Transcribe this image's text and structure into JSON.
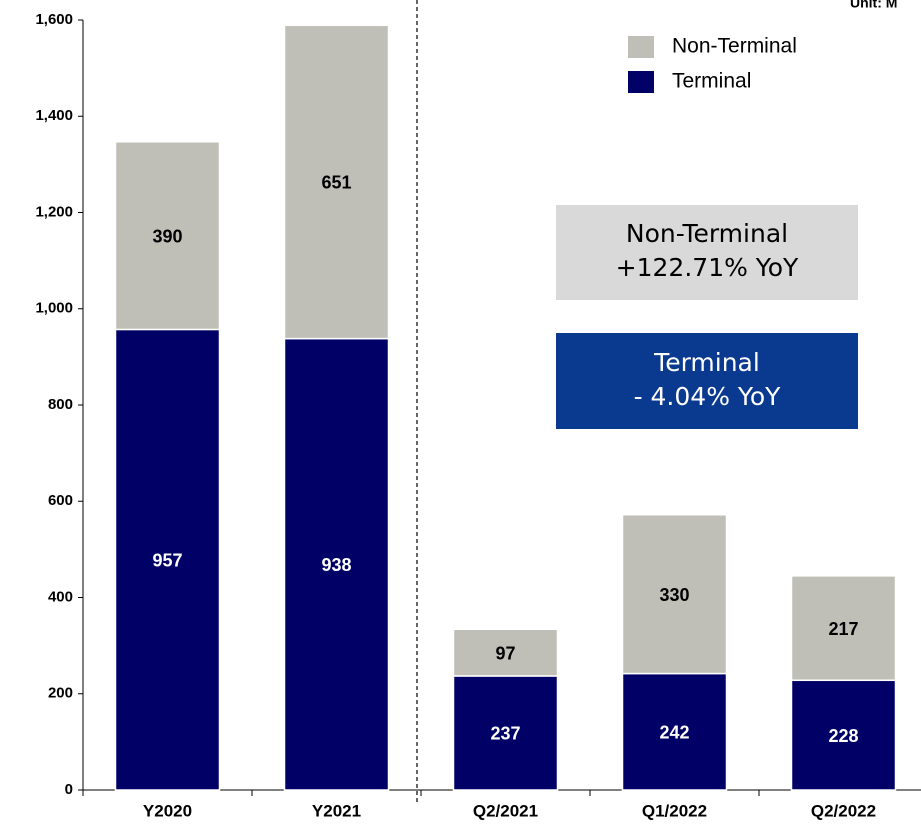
{
  "chart_data": {
    "type": "stacked_bar",
    "unit_note": "Unit: M",
    "categories": [
      "Y2020",
      "Y2021",
      "Q2/2021",
      "Q1/2022",
      "Q2/2022"
    ],
    "series": [
      {
        "name": "Terminal",
        "color": "#000066",
        "values": [
          957,
          938,
          237,
          242,
          228
        ]
      },
      {
        "name": "Non-Terminal",
        "color": "#bfbfb8",
        "values": [
          390,
          651,
          97,
          330,
          217
        ]
      }
    ],
    "ylim": [
      0,
      1600
    ],
    "yticks": [
      0,
      200,
      400,
      600,
      800,
      {
        "value": 1000,
        "label": "1,000"
      },
      {
        "value": 1200,
        "label": "1,200"
      },
      {
        "value": 1400,
        "label": "1,400"
      },
      {
        "value": 1600,
        "label": "1,600"
      }
    ],
    "annotations": [
      {
        "lines": [
          "Non-Terminal",
          "+122.71% YoY"
        ]
      },
      {
        "lines": [
          "Terminal",
          "- 4.04% YoY"
        ]
      }
    ]
  }
}
